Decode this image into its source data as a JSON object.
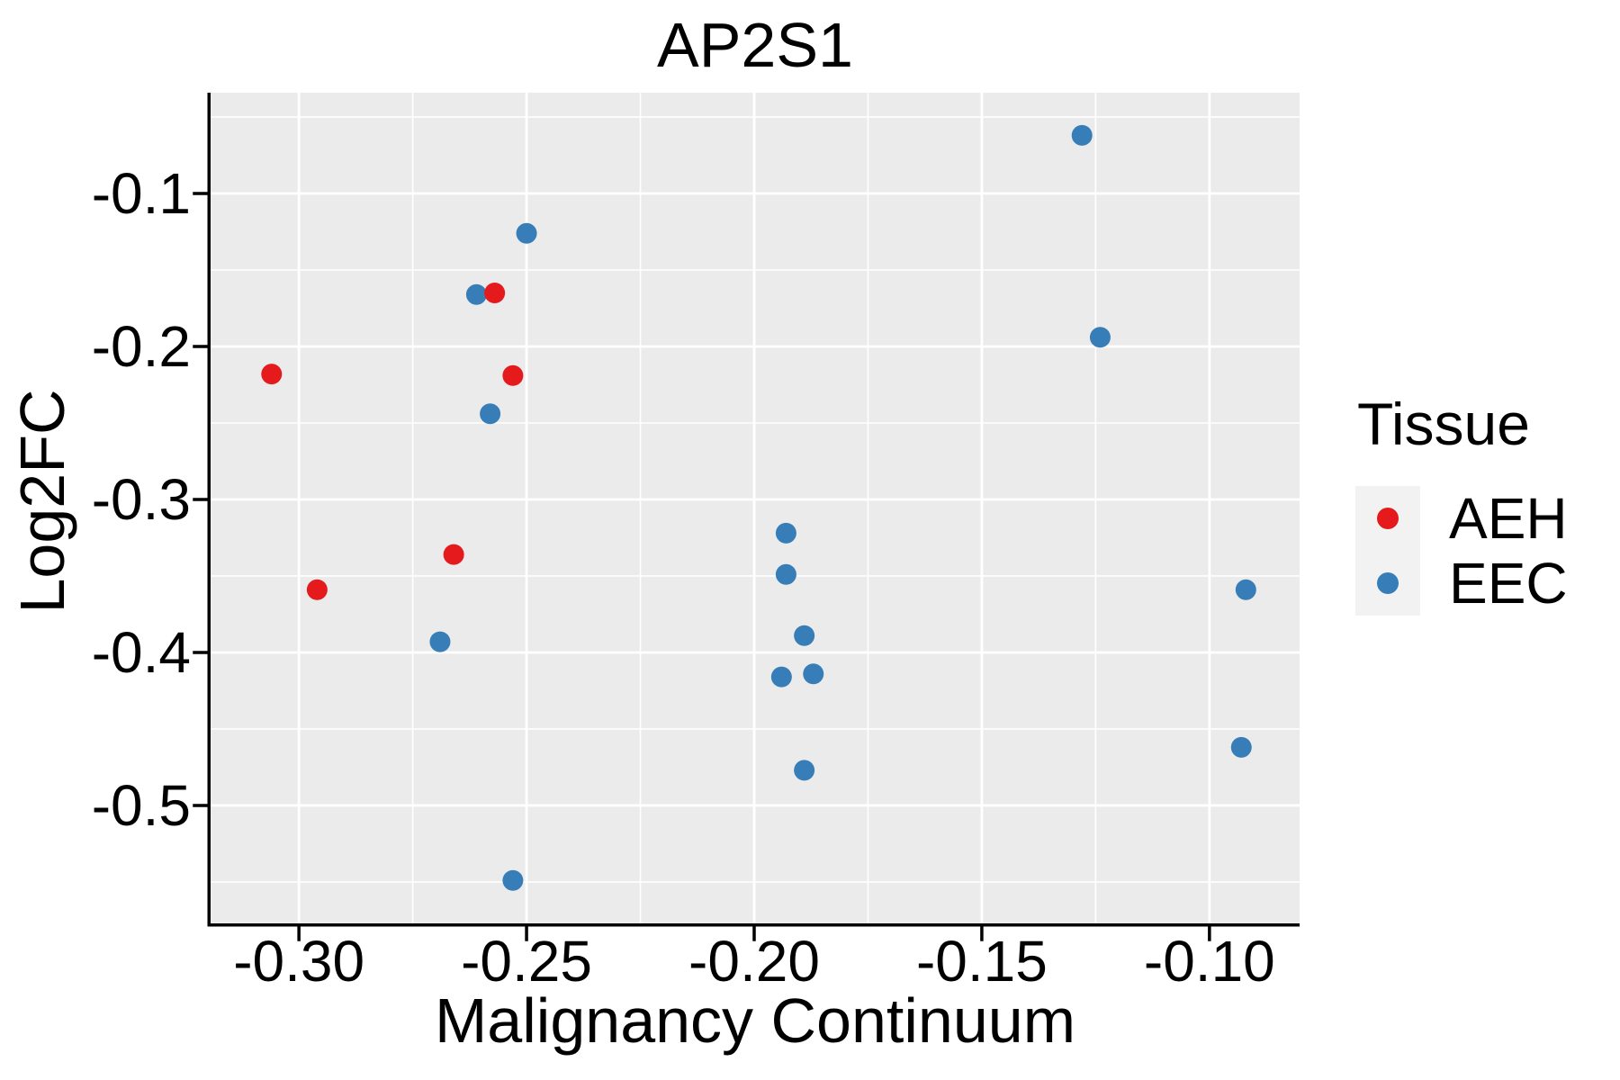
{
  "chart_data": {
    "type": "scatter",
    "title": "AP2S1",
    "xlabel": "Malignancy Continuum",
    "ylabel": "Log2FC",
    "grid": true,
    "panel_background": "#EBEBEB",
    "gridline_color": "#FFFFFF",
    "axis_line_color": "#000000",
    "text_color": "#000000",
    "xlim": [
      -0.3194,
      -0.0802
    ],
    "ylim": [
      -0.5771,
      -0.0341
    ],
    "x_ticks": {
      "values": [
        -0.3,
        -0.25,
        -0.2,
        -0.15,
        -0.1
      ],
      "labels": [
        "-0.30",
        "-0.25",
        "-0.20",
        "-0.15",
        "-0.10"
      ],
      "minor": [
        -0.275,
        -0.225,
        -0.175,
        -0.125
      ]
    },
    "y_ticks": {
      "values": [
        -0.1,
        -0.2,
        -0.3,
        -0.4,
        -0.5
      ],
      "labels": [
        "-0.1",
        "-0.2",
        "-0.3",
        "-0.4",
        "-0.5"
      ],
      "minor": [
        -0.05,
        -0.15,
        -0.25,
        -0.35,
        -0.45,
        -0.55
      ]
    },
    "legend": {
      "title": "Tissue",
      "position": "right",
      "items": [
        {
          "label": "AEH",
          "color": "#E41A1C",
          "marker": "circle"
        },
        {
          "label": "EEC",
          "color": "#377EB8",
          "marker": "circle"
        }
      ]
    },
    "series": [
      {
        "name": "EEC",
        "color": "#377EB8",
        "points": [
          [
            -0.25,
            -0.126
          ],
          [
            -0.261,
            -0.166
          ],
          [
            -0.258,
            -0.244
          ],
          [
            -0.269,
            -0.393
          ],
          [
            -0.253,
            -0.549
          ],
          [
            -0.193,
            -0.322
          ],
          [
            -0.193,
            -0.349
          ],
          [
            -0.189,
            -0.389
          ],
          [
            -0.194,
            -0.416
          ],
          [
            -0.187,
            -0.414
          ],
          [
            -0.189,
            -0.477
          ],
          [
            -0.128,
            -0.062
          ],
          [
            -0.124,
            -0.194
          ],
          [
            -0.092,
            -0.359
          ],
          [
            -0.093,
            -0.462
          ]
        ]
      },
      {
        "name": "AEH",
        "color": "#E41A1C",
        "points": [
          [
            -0.306,
            -0.218
          ],
          [
            -0.257,
            -0.165
          ],
          [
            -0.253,
            -0.219
          ],
          [
            -0.266,
            -0.336
          ],
          [
            -0.296,
            -0.359
          ]
        ]
      }
    ]
  }
}
